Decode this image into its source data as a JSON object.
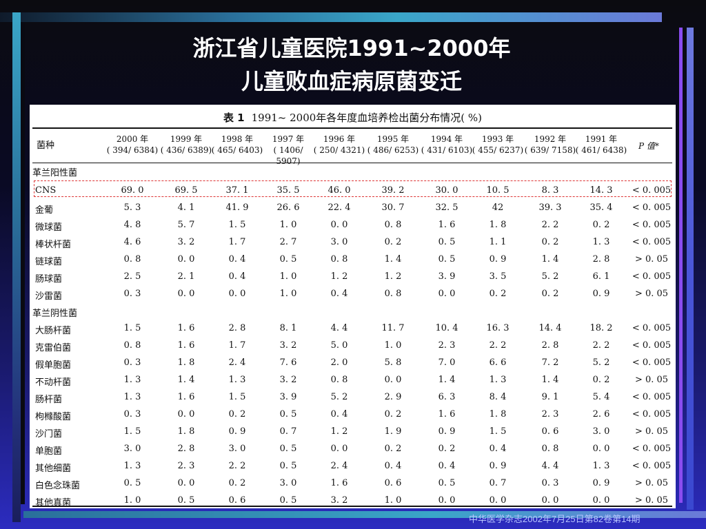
{
  "slide": {
    "title_line1": "浙江省儿童医院1991~2000年",
    "title_line2": "儿童败血症病原菌变迁",
    "footer": "中华医学杂志2002年7月25日第82卷第14期"
  },
  "table": {
    "caption_label": "表 1",
    "caption_text": "1991~ 2000年各年度血培养检出菌分布情况( %)",
    "col0": "菌种",
    "columns": [
      {
        "year": "2000 年",
        "count": "( 394/ 6384)"
      },
      {
        "year": "1999 年",
        "count": "( 436/ 6389)"
      },
      {
        "year": "1998 年",
        "count": "( 465/ 6403)"
      },
      {
        "year": "1997 年",
        "count": "( 1406/ 5907)"
      },
      {
        "year": "1996 年",
        "count": "( 250/ 4321)"
      },
      {
        "year": "1995 年",
        "count": "( 486/ 6253)"
      },
      {
        "year": "1994 年",
        "count": "( 431/ 6103)"
      },
      {
        "year": "1993 年",
        "count": "( 455/ 6237)"
      },
      {
        "year": "1992 年",
        "count": "( 639/ 7158)"
      },
      {
        "year": "1991 年",
        "count": "( 461/ 6438)"
      }
    ],
    "pcol": "P 值*",
    "section_gp": "革兰阳性菌",
    "section_gn": "革兰阴性菌",
    "rows": [
      {
        "name": "CNS",
        "v": [
          "69. 0",
          "69. 5",
          "37. 1",
          "35. 5",
          "46. 0",
          "39. 2",
          "30. 0",
          "10. 5",
          "8. 3",
          "14. 3"
        ],
        "p": "< 0. 005"
      },
      {
        "name": "金葡",
        "v": [
          "5. 3",
          "4. 1",
          "41. 9",
          "26. 6",
          "22. 4",
          "30. 7",
          "32. 5",
          "42",
          "39. 3",
          "35. 4"
        ],
        "p": "< 0. 005"
      },
      {
        "name": "微球菌",
        "v": [
          "4. 8",
          "5. 7",
          "1. 5",
          "1. 0",
          "0. 0",
          "0. 8",
          "1. 6",
          "1. 8",
          "2. 2",
          "0. 2"
        ],
        "p": "< 0. 005"
      },
      {
        "name": "棒状杆菌",
        "v": [
          "4. 6",
          "3. 2",
          "1. 7",
          "2. 7",
          "3. 0",
          "0. 2",
          "0. 5",
          "1. 1",
          "0. 2",
          "1. 3"
        ],
        "p": "< 0. 005"
      },
      {
        "name": "链球菌",
        "v": [
          "0. 8",
          "0. 0",
          "0. 4",
          "0. 5",
          "0. 8",
          "1. 4",
          "0. 5",
          "0. 9",
          "1. 4",
          "2. 8"
        ],
        "p": "> 0. 05"
      },
      {
        "name": "肠球菌",
        "v": [
          "2. 5",
          "2. 1",
          "0. 4",
          "1. 0",
          "1. 2",
          "1. 2",
          "3. 9",
          "3. 5",
          "5. 2",
          "6. 1"
        ],
        "p": "< 0. 005"
      },
      {
        "name": "沙雷菌",
        "v": [
          "0. 3",
          "0. 0",
          "0. 0",
          "1. 0",
          "0. 4",
          "0. 8",
          "0. 0",
          "0. 2",
          "0. 2",
          "0. 9"
        ],
        "p": "> 0. 05"
      },
      {
        "name": "大肠杆菌",
        "v": [
          "1. 5",
          "1. 6",
          "2. 8",
          "8. 1",
          "4. 4",
          "11. 7",
          "10. 4",
          "16. 3",
          "14. 4",
          "18. 2"
        ],
        "p": "< 0. 005"
      },
      {
        "name": "克雷伯菌",
        "v": [
          "0. 8",
          "1. 6",
          "1. 7",
          "3. 2",
          "5. 0",
          "1. 0",
          "2. 3",
          "2. 2",
          "2. 8",
          "2. 2"
        ],
        "p": "< 0. 005"
      },
      {
        "name": "假单胞菌",
        "v": [
          "0. 3",
          "1. 8",
          "2. 4",
          "7. 6",
          "2. 0",
          "5. 8",
          "7. 0",
          "6. 6",
          "7. 2",
          "5. 2"
        ],
        "p": "< 0. 005"
      },
      {
        "name": "不动杆菌",
        "v": [
          "1. 3",
          "1. 4",
          "1. 3",
          "3. 2",
          "0. 8",
          "0. 0",
          "1. 4",
          "1. 3",
          "1. 4",
          "0. 2"
        ],
        "p": "> 0. 05"
      },
      {
        "name": "肠杆菌",
        "v": [
          "1. 3",
          "1. 6",
          "1. 5",
          "3. 9",
          "5. 2",
          "2. 9",
          "6. 3",
          "8. 4",
          "9. 1",
          "5. 4"
        ],
        "p": "< 0. 005"
      },
      {
        "name": "枸橼酸菌",
        "v": [
          "0. 3",
          "0. 0",
          "0. 2",
          "0. 5",
          "0. 4",
          "0. 2",
          "1. 6",
          "1. 8",
          "2. 3",
          "2. 6"
        ],
        "p": "< 0. 005"
      },
      {
        "name": "沙门菌",
        "v": [
          "1. 5",
          "1. 8",
          "0. 9",
          "0. 7",
          "1. 2",
          "1. 9",
          "0. 9",
          "1. 5",
          "0. 6",
          "3. 0"
        ],
        "p": "> 0. 05"
      },
      {
        "name": "单胞菌",
        "v": [
          "3. 0",
          "2. 8",
          "3. 0",
          "0. 5",
          "0. 0",
          "0. 2",
          "0. 2",
          "0. 4",
          "0. 8",
          "0. 0"
        ],
        "p": "< 0. 005"
      },
      {
        "name": "其他细菌",
        "v": [
          "1. 3",
          "2. 3",
          "2. 2",
          "0. 5",
          "2. 4",
          "0. 4",
          "0. 4",
          "0. 9",
          "4. 4",
          "1. 3"
        ],
        "p": "< 0. 005"
      },
      {
        "name": "白色念珠菌",
        "v": [
          "0. 5",
          "0. 0",
          "0. 2",
          "3. 0",
          "1. 6",
          "0. 6",
          "0. 5",
          "0. 7",
          "0. 3",
          "0. 9"
        ],
        "p": "> 0. 05"
      },
      {
        "name": "其他真菌",
        "v": [
          "1. 0",
          "0. 5",
          "0. 6",
          "0. 5",
          "3. 2",
          "1. 0",
          "0. 0",
          "0. 0",
          "0. 0",
          "0. 0"
        ],
        "p": "> 0. 05"
      }
    ]
  }
}
